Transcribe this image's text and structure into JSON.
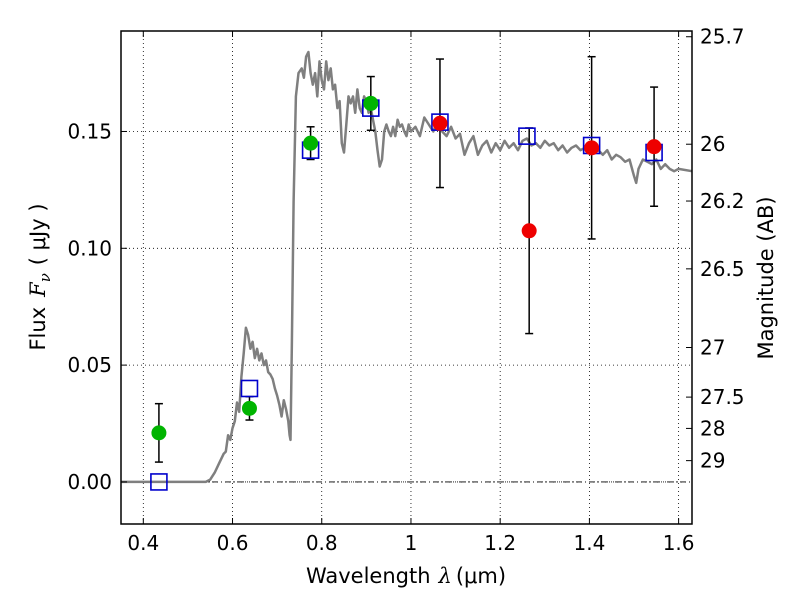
{
  "chart_data": {
    "type": "scatter",
    "xlabel": {
      "prefix": "Wavelength",
      "math": "λ",
      "unit": "(μm)"
    },
    "ylabel": {
      "prefix": "Flux",
      "math": "F",
      "sub": "ν",
      "unit": "( μJy )"
    },
    "y2label": "Magnitude (AB)",
    "xlim": [
      0.35,
      1.63
    ],
    "ylim": [
      -0.018,
      0.193
    ],
    "x_ticks": [
      0.4,
      0.6,
      0.8,
      1.0,
      1.2,
      1.4,
      1.6
    ],
    "x_tick_labels": [
      "0.4",
      "0.6",
      "0.8",
      "1",
      "1.2",
      "1.4",
      "1.6"
    ],
    "y_ticks": [
      0.0,
      0.05,
      0.1,
      0.15
    ],
    "y_tick_labels": [
      "0.00",
      "0.05",
      "0.10",
      "0.15"
    ],
    "mag_ticks": [
      25.7,
      26.0,
      26.2,
      26.5,
      27.0,
      27.5,
      28.0,
      29.0
    ],
    "mag_tick_labels": [
      "25.7",
      "26",
      "26.2",
      "26.5",
      "27",
      "27.5",
      "28",
      "29"
    ],
    "grid": true,
    "zero_line": true,
    "series": [
      {
        "type": "line",
        "color": "#7f7f7f",
        "points": [
          [
            0.35,
            0.0
          ],
          [
            0.54,
            0.0
          ],
          [
            0.55,
            0.001
          ],
          [
            0.56,
            0.004
          ],
          [
            0.57,
            0.008
          ],
          [
            0.58,
            0.012
          ],
          [
            0.585,
            0.013
          ],
          [
            0.59,
            0.02
          ],
          [
            0.595,
            0.018
          ],
          [
            0.6,
            0.023
          ],
          [
            0.605,
            0.026
          ],
          [
            0.61,
            0.034
          ],
          [
            0.615,
            0.03
          ],
          [
            0.62,
            0.045
          ],
          [
            0.625,
            0.055
          ],
          [
            0.63,
            0.066
          ],
          [
            0.635,
            0.063
          ],
          [
            0.64,
            0.057
          ],
          [
            0.645,
            0.06
          ],
          [
            0.65,
            0.053
          ],
          [
            0.655,
            0.057
          ],
          [
            0.66,
            0.052
          ],
          [
            0.665,
            0.055
          ],
          [
            0.67,
            0.05
          ],
          [
            0.675,
            0.052
          ],
          [
            0.68,
            0.047
          ],
          [
            0.685,
            0.046
          ],
          [
            0.69,
            0.044
          ],
          [
            0.695,
            0.04
          ],
          [
            0.7,
            0.037
          ],
          [
            0.705,
            0.033
          ],
          [
            0.71,
            0.028
          ],
          [
            0.715,
            0.035
          ],
          [
            0.72,
            0.031
          ],
          [
            0.725,
            0.026
          ],
          [
            0.728,
            0.02
          ],
          [
            0.73,
            0.018
          ],
          [
            0.733,
            0.06
          ],
          [
            0.737,
            0.12
          ],
          [
            0.742,
            0.165
          ],
          [
            0.748,
            0.175
          ],
          [
            0.755,
            0.177
          ],
          [
            0.76,
            0.173
          ],
          [
            0.765,
            0.182
          ],
          [
            0.77,
            0.184
          ],
          [
            0.775,
            0.175
          ],
          [
            0.78,
            0.17
          ],
          [
            0.785,
            0.175
          ],
          [
            0.79,
            0.165
          ],
          [
            0.795,
            0.18
          ],
          [
            0.8,
            0.172
          ],
          [
            0.805,
            0.168
          ],
          [
            0.81,
            0.18
          ],
          [
            0.815,
            0.172
          ],
          [
            0.82,
            0.177
          ],
          [
            0.825,
            0.168
          ],
          [
            0.83,
            0.17
          ],
          [
            0.835,
            0.16
          ],
          [
            0.84,
            0.163
          ],
          [
            0.845,
            0.145
          ],
          [
            0.85,
            0.141
          ],
          [
            0.855,
            0.153
          ],
          [
            0.86,
            0.165
          ],
          [
            0.865,
            0.162
          ],
          [
            0.87,
            0.165
          ],
          [
            0.875,
            0.158
          ],
          [
            0.88,
            0.168
          ],
          [
            0.885,
            0.16
          ],
          [
            0.89,
            0.158
          ],
          [
            0.895,
            0.165
          ],
          [
            0.9,
            0.163
          ],
          [
            0.905,
            0.158
          ],
          [
            0.91,
            0.16
          ],
          [
            0.915,
            0.155
          ],
          [
            0.92,
            0.15
          ],
          [
            0.925,
            0.142
          ],
          [
            0.93,
            0.135
          ],
          [
            0.935,
            0.138
          ],
          [
            0.94,
            0.15
          ],
          [
            0.945,
            0.153
          ],
          [
            0.95,
            0.15
          ],
          [
            0.955,
            0.148
          ],
          [
            0.96,
            0.152
          ],
          [
            0.965,
            0.148
          ],
          [
            0.97,
            0.155
          ],
          [
            0.975,
            0.152
          ],
          [
            0.98,
            0.153
          ],
          [
            0.985,
            0.15
          ],
          [
            0.99,
            0.148
          ],
          [
            0.995,
            0.153
          ],
          [
            1.0,
            0.15
          ],
          [
            1.01,
            0.152
          ],
          [
            1.02,
            0.148
          ],
          [
            1.03,
            0.156
          ],
          [
            1.04,
            0.153
          ],
          [
            1.05,
            0.15
          ],
          [
            1.06,
            0.155
          ],
          [
            1.07,
            0.15
          ],
          [
            1.08,
            0.148
          ],
          [
            1.09,
            0.152
          ],
          [
            1.1,
            0.147
          ],
          [
            1.11,
            0.149
          ],
          [
            1.12,
            0.14
          ],
          [
            1.13,
            0.145
          ],
          [
            1.14,
            0.148
          ],
          [
            1.15,
            0.14
          ],
          [
            1.16,
            0.144
          ],
          [
            1.17,
            0.146
          ],
          [
            1.18,
            0.141
          ],
          [
            1.19,
            0.145
          ],
          [
            1.2,
            0.142
          ],
          [
            1.21,
            0.146
          ],
          [
            1.22,
            0.143
          ],
          [
            1.23,
            0.145
          ],
          [
            1.24,
            0.142
          ],
          [
            1.25,
            0.146
          ],
          [
            1.26,
            0.147
          ],
          [
            1.27,
            0.144
          ],
          [
            1.28,
            0.145
          ],
          [
            1.29,
            0.143
          ],
          [
            1.3,
            0.146
          ],
          [
            1.31,
            0.144
          ],
          [
            1.32,
            0.145
          ],
          [
            1.33,
            0.142
          ],
          [
            1.34,
            0.144
          ],
          [
            1.35,
            0.141
          ],
          [
            1.36,
            0.143
          ],
          [
            1.37,
            0.144
          ],
          [
            1.38,
            0.142
          ],
          [
            1.39,
            0.143
          ],
          [
            1.4,
            0.141
          ],
          [
            1.41,
            0.143
          ],
          [
            1.42,
            0.142
          ],
          [
            1.43,
            0.14
          ],
          [
            1.44,
            0.142
          ],
          [
            1.45,
            0.138
          ],
          [
            1.46,
            0.14
          ],
          [
            1.47,
            0.139
          ],
          [
            1.48,
            0.137
          ],
          [
            1.49,
            0.138
          ],
          [
            1.5,
            0.131
          ],
          [
            1.505,
            0.128
          ],
          [
            1.51,
            0.134
          ],
          [
            1.52,
            0.138
          ],
          [
            1.53,
            0.137
          ],
          [
            1.54,
            0.136
          ],
          [
            1.55,
            0.138
          ],
          [
            1.56,
            0.134
          ],
          [
            1.57,
            0.136
          ],
          [
            1.58,
            0.134
          ],
          [
            1.59,
            0.133
          ],
          [
            1.6,
            0.134
          ],
          [
            1.63,
            0.133
          ]
        ]
      },
      {
        "type": "errorbar",
        "color": "#000000",
        "points": [
          {
            "x": 0.435,
            "y": 0.021,
            "err": 0.0125
          },
          {
            "x": 0.638,
            "y": 0.0315,
            "err": 0.005
          },
          {
            "x": 0.775,
            "y": 0.145,
            "err": 0.007
          },
          {
            "x": 0.91,
            "y": 0.162,
            "err": 0.0115
          },
          {
            "x": 1.065,
            "y": 0.1535,
            "err": 0.0275
          },
          {
            "x": 1.265,
            "y": 0.1075,
            "err": 0.044
          },
          {
            "x": 1.405,
            "y": 0.143,
            "err": 0.039
          },
          {
            "x": 1.545,
            "y": 0.1435,
            "err": 0.0255
          }
        ]
      },
      {
        "type": "scatter",
        "marker": "square-open",
        "color": "#0000cc",
        "points": [
          [
            0.435,
            0.0
          ],
          [
            0.638,
            0.04
          ],
          [
            0.775,
            0.142
          ],
          [
            0.91,
            0.16
          ],
          [
            1.065,
            0.154
          ],
          [
            1.26,
            0.148
          ],
          [
            1.405,
            0.144
          ],
          [
            1.545,
            0.141
          ]
        ]
      },
      {
        "type": "scatter",
        "marker": "circle",
        "color": "#00b400",
        "points": [
          [
            0.435,
            0.021
          ],
          [
            0.638,
            0.0315
          ],
          [
            0.775,
            0.145
          ],
          [
            0.91,
            0.162
          ]
        ]
      },
      {
        "type": "scatter",
        "marker": "circle",
        "color": "#ee0000",
        "points": [
          [
            1.065,
            0.1535
          ],
          [
            1.265,
            0.1075
          ],
          [
            1.405,
            0.143
          ],
          [
            1.545,
            0.1435
          ]
        ]
      }
    ]
  }
}
